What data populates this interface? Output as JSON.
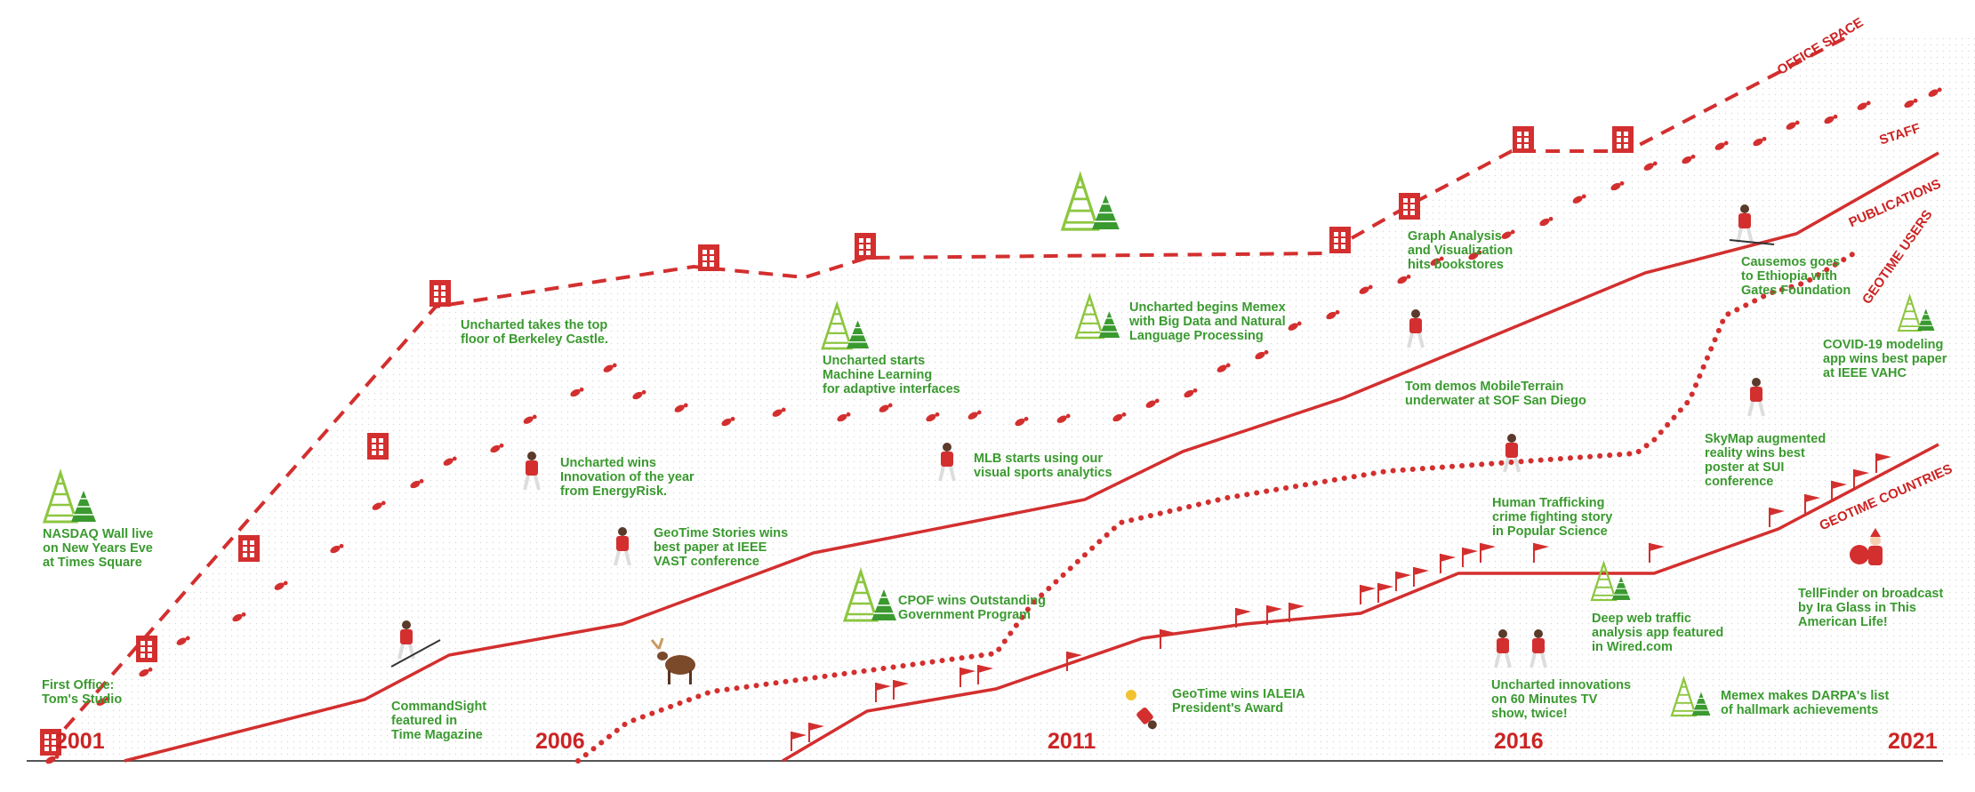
{
  "years": [
    "2001",
    "2006",
    "2011",
    "2016",
    "2021"
  ],
  "lanes": {
    "office": "OFFICE SPACE",
    "staff": "STAFF",
    "publications": "PUBLICATIONS",
    "users": "GEOTIME USERS",
    "countries": "GEOTIME COUNTRIES"
  },
  "events": {
    "nasdaq": "NASDAQ Wall live\non New Years Eve\nat Times Square",
    "first_office": "First Office:\nTom's Studio",
    "commandsight": "CommandSight\nfeatured in\nTime Magazine",
    "berkeley": "Uncharted takes the top\nfloor of Berkeley Castle.",
    "innovation": "Uncharted wins\nInnovation of the year\nfrom EnergyRisk.",
    "geotime_stories": "GeoTime Stories wins\nbest paper at IEEE\nVAST conference",
    "machine_learning": "Uncharted starts\nMachine Learning\nfor adaptive interfaces",
    "mlb": "MLB starts using our\nvisual sports analytics",
    "cpof": "CPOF wins Outstanding\nGovernment Program",
    "ialeia": "GeoTime wins IALEIA\nPresident's Award",
    "memex": "Uncharted begins Memex\nwith Big Data and Natural\nLanguage Processing",
    "graph": "Graph Analysis\nand Visualization\nhits bookstores",
    "mobileterrain": "Tom demos MobileTerrain\nunderwater at SOF San Diego",
    "trafficking": "Human Trafficking\ncrime fighting story\nin Popular Science",
    "deepweb": "Deep web traffic\nanalysis app featured\nin Wired.com",
    "sixty_minutes": "Uncharted innovations\non 60 Minutes TV\nshow, twice!",
    "darpa": "Memex makes DARPA's list\nof hallmark achievements",
    "causemos": "Causemos goes\nto Ethiopia with\nGates Foundation",
    "covid": "COVID-19 modeling\napp wins best paper\nat IEEE VAHC",
    "skymap": "SkyMap augmented\nreality wins best\nposter at SUI\nconference",
    "tellfinder": "TellFinder on broadcast\nby Ira Glass in This\nAmerican Life!"
  },
  "colors": {
    "red": "#d32f2f",
    "green": "#3a9a2f",
    "light_green": "#8cc63f",
    "grid": "#dddddd"
  },
  "icons": [
    "building-icon",
    "footprints-icon",
    "flag-icon",
    "tree-icon",
    "skier-icon",
    "moose-icon",
    "santa-icon"
  ]
}
